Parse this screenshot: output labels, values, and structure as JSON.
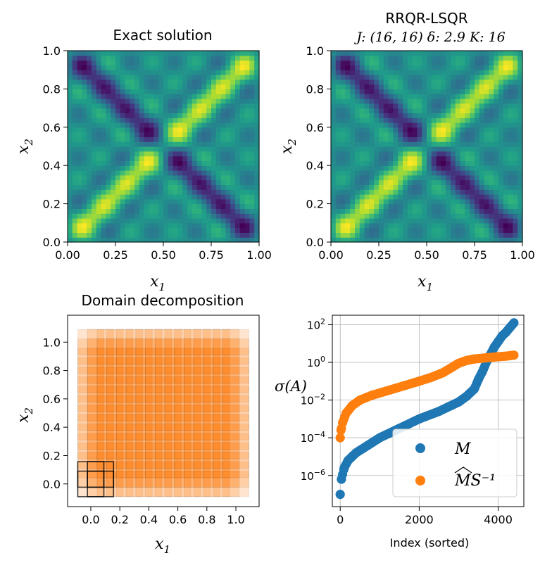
{
  "chart_data": [
    {
      "type": "heatmap",
      "title": "Exact solution",
      "xlabel": "x",
      "xlabel_sub": "1",
      "ylabel": "x",
      "ylabel_sub": "2",
      "xlim": [
        0,
        1
      ],
      "ylim": [
        0,
        1
      ],
      "xticks": [
        "0.00",
        "0.25",
        "0.50",
        "0.75",
        "1.00"
      ],
      "yticks": [
        "0.0",
        "0.2",
        "0.4",
        "0.6",
        "0.8",
        "1.0"
      ],
      "colormap": "viridis",
      "field": "sum of sin(2πk x1)·sin(2πk x2) over k≤4 (periodic diagonal pattern)"
    },
    {
      "type": "heatmap",
      "title": "RRQR-LSQR",
      "subtitle": "J: (16, 16)  δ: 2.9  K: 16",
      "xlabel": "x",
      "xlabel_sub": "1",
      "ylabel": "x",
      "ylabel_sub": "2",
      "xlim": [
        0,
        1
      ],
      "ylim": [
        0,
        1
      ],
      "xticks": [
        "0.00",
        "0.25",
        "0.50",
        "0.75",
        "1.00"
      ],
      "yticks": [
        "0.0",
        "0.2",
        "0.4",
        "0.6",
        "0.8",
        "1.0"
      ],
      "colormap": "viridis"
    },
    {
      "type": "scatter",
      "title": "Domain decomposition",
      "xlabel": "x",
      "xlabel_sub": "1",
      "ylabel": "x",
      "ylabel_sub": "2",
      "xlim": [
        -0.16,
        1.16
      ],
      "ylim": [
        -0.16,
        1.19
      ],
      "xticks": [
        "0.0",
        "0.2",
        "0.4",
        "0.6",
        "0.8",
        "1.0"
      ],
      "yticks": [
        "0.0",
        "0.2",
        "0.4",
        "0.6",
        "0.8",
        "1.0"
      ],
      "subdomain_grid": [
        16,
        16
      ],
      "subdomain_centers_range": [
        0.0,
        1.0
      ],
      "subdomain_half_width": 0.09,
      "fill_color": "#ff7f0e",
      "highlighted_subdomains": [
        [
          0,
          0
        ],
        [
          1,
          0
        ],
        [
          0,
          1
        ],
        [
          1,
          1
        ]
      ]
    },
    {
      "type": "scatter",
      "title": "",
      "xlabel": "Index (sorted)",
      "ylabel": "σ(A)",
      "yscale": "log",
      "xlim": [
        -200,
        4650
      ],
      "ylim_log10": [
        -7.65,
        2.5
      ],
      "xticks": [
        "0",
        "2000",
        "4000"
      ],
      "yticks_base": "10",
      "yticks_exp": [
        "2",
        "0",
        "-2",
        "-4",
        "-6"
      ],
      "legend": [
        "M",
        "MS⁻¹"
      ],
      "series": [
        {
          "name": "M",
          "color": "#1f77b4",
          "x": [
            0,
            30,
            100,
            200,
            400,
            700,
            1000,
            1500,
            2000,
            2500,
            2800,
            3000,
            3200,
            3400,
            3500,
            3600,
            3700,
            3800,
            3900,
            4000,
            4100,
            4200,
            4300,
            4400
          ],
          "log10_y": [
            -7.0,
            -6.2,
            -5.6,
            -5.2,
            -4.8,
            -4.4,
            -4.0,
            -3.5,
            -3.0,
            -2.6,
            -2.3,
            -2.1,
            -1.8,
            -1.4,
            -0.9,
            -0.5,
            0.0,
            0.4,
            0.8,
            1.1,
            1.4,
            1.6,
            1.85,
            2.1
          ]
        },
        {
          "name": "MS⁻¹",
          "color": "#ff7f0e",
          "x": [
            0,
            20,
            60,
            150,
            300,
            500,
            800,
            1200,
            1600,
            2000,
            2300,
            2600,
            2800,
            3000,
            3200,
            3400,
            3600,
            3800,
            4000,
            4200,
            4400
          ],
          "log10_y": [
            -4.0,
            -3.6,
            -3.2,
            -2.7,
            -2.3,
            -2.0,
            -1.75,
            -1.5,
            -1.25,
            -1.0,
            -0.8,
            -0.55,
            -0.3,
            -0.05,
            0.1,
            0.18,
            0.22,
            0.26,
            0.3,
            0.33,
            0.38
          ]
        }
      ]
    }
  ]
}
